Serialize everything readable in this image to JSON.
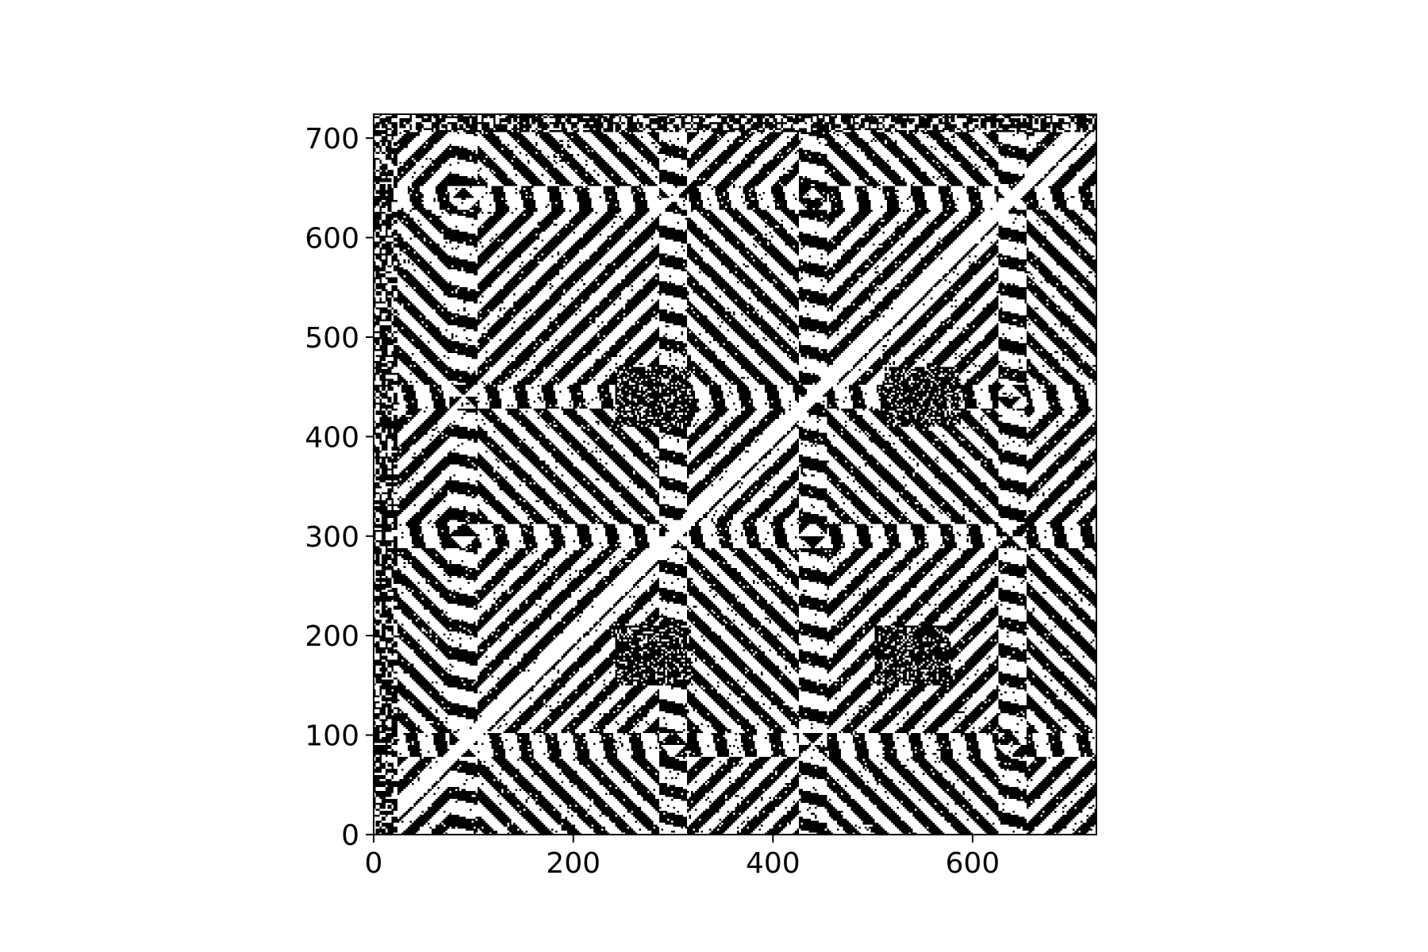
{
  "chart_data": {
    "type": "heatmap",
    "subtype": "binary-recurrence-plot",
    "title": "",
    "xlabel": "",
    "ylabel": "",
    "xlim": [
      0,
      724
    ],
    "ylim": [
      0,
      724
    ],
    "x_ticks": [
      0,
      200,
      400,
      600
    ],
    "y_ticks": [
      0,
      100,
      200,
      300,
      400,
      500,
      600,
      700
    ],
    "x_tick_labels": [
      "0",
      "200",
      "400",
      "600"
    ],
    "y_tick_labels": [
      "0",
      "100",
      "200",
      "300",
      "400",
      "500",
      "600",
      "700"
    ],
    "grid": false,
    "legend": "none",
    "colors": {
      "recurrence": "#000000",
      "background": "#ffffff",
      "axes": "#000000"
    },
    "structure": {
      "main_diagonal": true,
      "block_boundaries": [
        90,
        300,
        440,
        640
      ],
      "dense_cores": [
        [
          280,
          440
        ],
        [
          550,
          440
        ],
        [
          280,
          180
        ],
        [
          540,
          180
        ]
      ],
      "stripe_spacing": 28
    }
  }
}
